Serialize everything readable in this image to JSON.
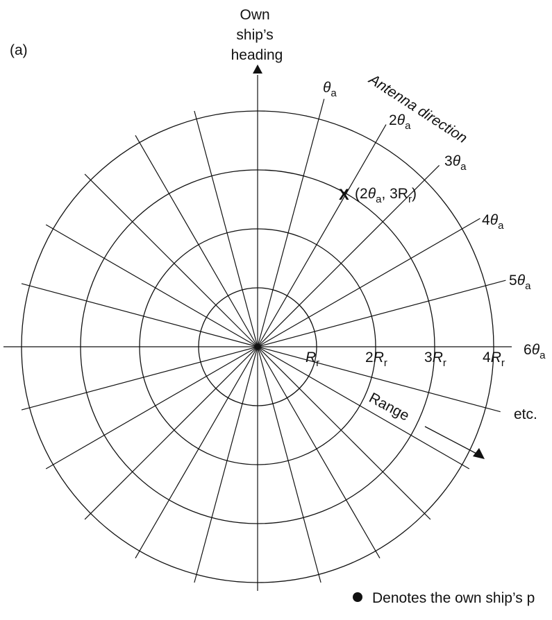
{
  "panel_label": "(a)",
  "heading_label": [
    "Own",
    "ship’s",
    "heading"
  ],
  "antenna_label": "Antenna direction",
  "range_label": "Range",
  "theta_symbol": "θ",
  "theta_subscript": "a",
  "angle_labels": [
    {
      "coef": ""
    },
    {
      "coef": "2"
    },
    {
      "coef": "3"
    },
    {
      "coef": "4"
    },
    {
      "coef": "5"
    },
    {
      "coef": "6"
    }
  ],
  "etc_label": "etc.",
  "range_ring_labels": [
    {
      "coef": ""
    },
    {
      "coef": "2"
    },
    {
      "coef": "3"
    },
    {
      "coef": "4"
    }
  ],
  "range_symbol": "R",
  "range_subscript": "r",
  "point_marker": "X",
  "point_label": {
    "open": "(2",
    "mid": ", 3R",
    "close": ")"
  },
  "legend_text": "Denotes the own ship’s p",
  "colors": {
    "line": "#111111",
    "background": "#ffffff"
  }
}
